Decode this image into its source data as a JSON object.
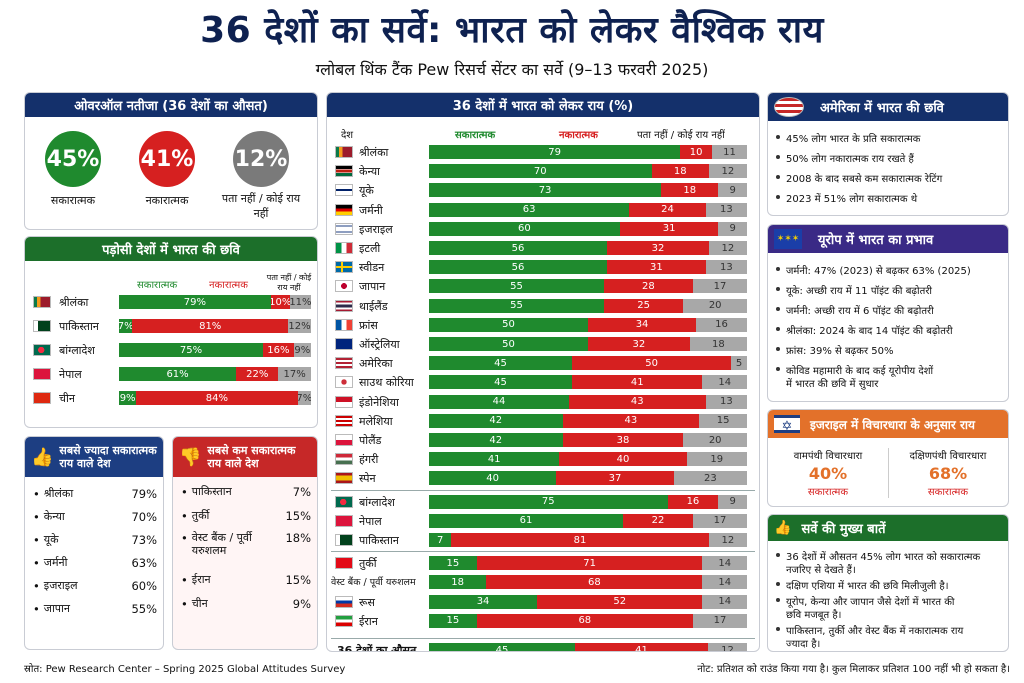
{
  "title": "36 देशों का सर्वे: भारत को लेकर वैश्विक राय",
  "subtitle": "ग्लोबल थिंक टैंक Pew रिसर्च सेंटर का सर्वे (9–13 फरवरी 2025)",
  "colors": {
    "positive": "#1f8a2e",
    "negative": "#d62020",
    "neutral": "#a8a8a8",
    "navy": "#14306b"
  },
  "overall": {
    "header": "ओवरऑल नतीजा (36 देशों का औसत)",
    "items": [
      {
        "value": "45%",
        "label": "सकारात्मक",
        "color": "#1f8a2e"
      },
      {
        "value": "41%",
        "label": "नकारात्मक",
        "color": "#d62020"
      },
      {
        "value": "12%",
        "label": "पता नहीं / कोई राय नहीं",
        "color": "#7a7a7a"
      }
    ]
  },
  "neighbors": {
    "header": "पड़ोसी देशों में भारत की छवि",
    "col_pos": "सकारात्मक",
    "col_neg": "नकारात्मक",
    "col_neu": "पता नहीं / कोई राय नहीं",
    "rows": [
      {
        "name": "श्रीलंका",
        "pos": 79,
        "neg": 10,
        "neu": 11,
        "pos_label": "79%",
        "neg_label": "10%",
        "neu_label": "11%",
        "flag": "sri-lanka-flag"
      },
      {
        "name": "पाकिस्तान",
        "pos": 7,
        "neg": 81,
        "neu": 12,
        "pos_label": "7%",
        "neg_label": "81%",
        "neu_label": "12%",
        "flag": "pakistan-flag"
      },
      {
        "name": "बांग्लादेश",
        "pos": 75,
        "neg": 16,
        "neu": 9,
        "pos_label": "75%",
        "neg_label": "16%",
        "neu_label": "9%",
        "flag": "bangladesh-flag"
      },
      {
        "name": "नेपाल",
        "pos": 61,
        "neg": 22,
        "neu": 17,
        "pos_label": "61%",
        "neg_label": "22%",
        "neu_label": "17%",
        "flag": "nepal-flag"
      },
      {
        "name": "चीन",
        "pos": 9,
        "neg": 84,
        "neu": 7,
        "pos_label": "9%",
        "neg_label": "84%",
        "neu_label": "7%",
        "flag": "china-flag"
      }
    ]
  },
  "most_positive": {
    "header": "सबसे ज्यादा सकारात्मक राय वाले देश",
    "items": [
      {
        "name": "श्रीलंका",
        "value": "79%"
      },
      {
        "name": "केन्या",
        "value": "70%"
      },
      {
        "name": "यूके",
        "value": "73%"
      },
      {
        "name": "जर्मनी",
        "value": "63%"
      },
      {
        "name": "इजराइल",
        "value": "60%"
      },
      {
        "name": "जापान",
        "value": "55%"
      }
    ]
  },
  "least_positive": {
    "header": "सबसे कम सकारात्मक राय वाले देश",
    "items": [
      {
        "name": "पाकिस्तान",
        "value": "7%"
      },
      {
        "name": "तुर्की",
        "value": "15%"
      },
      {
        "name": "वेस्ट बैंक / पूर्वी यरुशलम",
        "value": "18%"
      },
      {
        "name": "ईरान",
        "value": "15%"
      },
      {
        "name": "चीन",
        "value": "9%"
      }
    ]
  },
  "chart_data": {
    "type": "bar",
    "title": "36 देशों में भारत को लेकर राय (%)",
    "col_country": "देश",
    "series": [
      {
        "name": "सकारात्मक",
        "values": [
          79,
          70,
          73,
          63,
          60,
          56,
          56,
          55,
          55,
          50,
          50,
          45,
          45,
          44,
          42,
          42,
          41,
          40,
          75,
          61,
          7,
          15,
          18,
          34,
          15,
          45
        ]
      },
      {
        "name": "नकारात्मक",
        "values": [
          10,
          18,
          18,
          24,
          31,
          32,
          31,
          28,
          25,
          34,
          32,
          50,
          41,
          43,
          43,
          38,
          40,
          37,
          16,
          22,
          81,
          71,
          68,
          52,
          68,
          41
        ]
      },
      {
        "name": "पता नहीं / कोई राय नहीं",
        "values": [
          11,
          12,
          9,
          13,
          9,
          12,
          13,
          17,
          20,
          16,
          18,
          5,
          14,
          13,
          15,
          20,
          19,
          23,
          9,
          17,
          12,
          14,
          14,
          14,
          17,
          12
        ]
      }
    ],
    "categories": [
      "श्रीलंका",
      "केन्या",
      "यूके",
      "जर्मनी",
      "इजराइल",
      "इटली",
      "स्वीडन",
      "जापान",
      "थाईलैंड",
      "फ्रांस",
      "ऑस्ट्रेलिया",
      "अमेरिका",
      "साउथ कोरिया",
      "इंडोनेशिया",
      "मलेशिया",
      "पोलैंड",
      "हंगरी",
      "स्पेन",
      "बांग्लादेश",
      "नेपाल",
      "पाकिस्तान",
      "तुर्की",
      "वेस्ट बैंक / पूर्वी यरुशलम",
      "रूस",
      "ईरान",
      "36 देशों का औसत"
    ],
    "flags": [
      "sri-lanka-flag",
      "kenya-flag",
      "uk-flag",
      "germany-flag",
      "israel-flag",
      "italy-flag",
      "sweden-flag",
      "japan-flag",
      "thailand-flag",
      "france-flag",
      "australia-flag",
      "usa-flag",
      "south-korea-flag",
      "indonesia-flag",
      "malaysia-flag",
      "poland-flag",
      "hungary-flag",
      "spain-flag",
      "bangladesh-flag",
      "nepal-flag",
      "pakistan-flag",
      "turkey-flag",
      "",
      "russia-flag",
      "iran-flag",
      ""
    ],
    "xlim": [
      0,
      100
    ],
    "stacked": true
  },
  "usa": {
    "header": "अमेरिका में भारत की छवि",
    "bullets": [
      "45% लोग भारत के प्रति सकारात्मक",
      "50% लोग नकारात्मक राय रखते हैं",
      "2008 के बाद सबसे कम सकारात्मक रेटिंग",
      "2023 में 51% लोग सकारात्मक थे"
    ]
  },
  "europe": {
    "header": "यूरोप में भारत का प्रभाव",
    "bullets": [
      "जर्मनी:   47% (2023) से बढ़कर 63% (2025)",
      "यूके:  अच्छी राय में 11 पॉइंट की बढ़ोतरी",
      "जर्मनी:  अच्छी राय में 6 पॉइंट की बढ़ोतरी",
      "श्रीलंका:   2024 के बाद 14 पॉइंट की बढ़ोतरी",
      "फ्रांस:  39% से बढ़कर 50%",
      "कोविड महामारी के बाद कई यूरोपीय देशों",
      "में भारत की छवि में सुधार"
    ]
  },
  "israel": {
    "header": "इजराइल में विचारधारा के अनुसार राय",
    "left_title": "वामपंथी विचारधारा",
    "left_value": "40%",
    "left_label": "सकारात्मक",
    "right_title": "दक्षिणपंथी विचारधारा",
    "right_value": "68%",
    "right_label": "सकारात्मक"
  },
  "key_points": {
    "header": "सर्वे की मुख्य बातें",
    "bullets": [
      "36 देशों में औसतन 45% लोग भारत को सकारात्मक",
      "नजरिए से देखते हैं।",
      "दक्षिण एशिया में भारत की छवि मिलीजुली है।",
      "यूरोप, केन्या और जापान जैसे देशों में भारत की",
      "छवि मजबूत है।",
      "पाकिस्तान, तुर्की और वेस्ट बैंक में नकारात्मक राय",
      "ज्यादा है।"
    ]
  },
  "source": "स्रोत:  Pew Research Center – Spring 2025 Global Attitudes Survey",
  "note": "नोट:  प्रतिशत को राउंड किया गया है। कुल मिलाकर प्रतिशत 100 नहीं भी हो सकता है।"
}
